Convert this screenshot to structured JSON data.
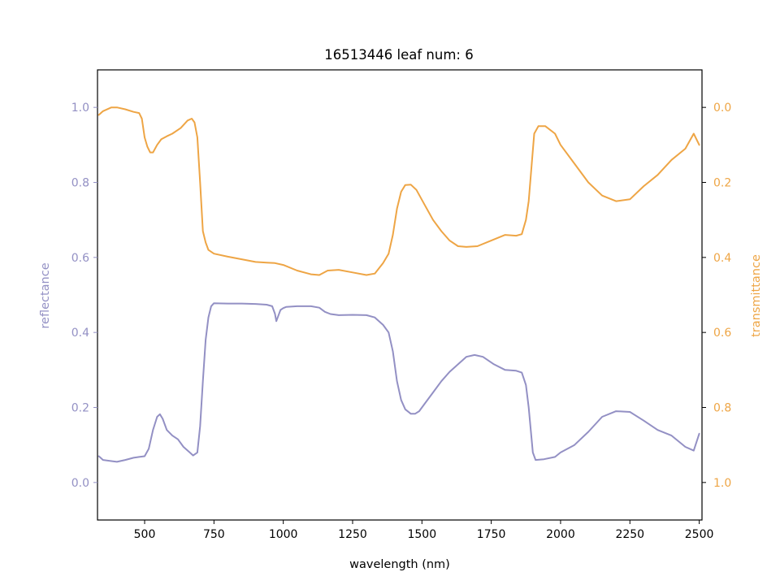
{
  "chart_data": {
    "type": "line",
    "title": "16513446 leaf num: 6",
    "xlabel": "wavelength (nm)",
    "ylabel_left": "reflectance",
    "ylabel_right": "transmittance",
    "xlim": [
      330,
      2510
    ],
    "ylim_left": [
      -0.1,
      1.1
    ],
    "ylim_right": [
      1.1,
      -0.1
    ],
    "right_axis_inverted": true,
    "grid": false,
    "xticks": [
      500,
      750,
      1000,
      1250,
      1500,
      1750,
      2000,
      2250,
      2500
    ],
    "xtick_labels": [
      "500",
      "750",
      "1000",
      "1250",
      "1500",
      "1750",
      "2000",
      "2250",
      "2500"
    ],
    "yticks_left": [
      0.0,
      0.2,
      0.4,
      0.6,
      0.8,
      1.0
    ],
    "ytick_labels_left": [
      "0.0",
      "0.2",
      "0.4",
      "0.6",
      "0.8",
      "1.0"
    ],
    "yticks_right": [
      0.0,
      0.2,
      0.4,
      0.6,
      0.8,
      1.0
    ],
    "ytick_labels_right": [
      "0.0",
      "0.2",
      "0.4",
      "0.6",
      "0.8",
      "1.0"
    ],
    "colors": {
      "reflectance": "#9390c4",
      "transmittance": "#eea545",
      "axes": "#000000"
    },
    "series": [
      {
        "axis": "left",
        "color": "#9390c4",
        "points": [
          [
            335,
            0.07
          ],
          [
            350,
            0.06
          ],
          [
            380,
            0.057
          ],
          [
            400,
            0.055
          ],
          [
            430,
            0.06
          ],
          [
            460,
            0.066
          ],
          [
            480,
            0.068
          ],
          [
            500,
            0.07
          ],
          [
            515,
            0.09
          ],
          [
            530,
            0.14
          ],
          [
            545,
            0.175
          ],
          [
            555,
            0.182
          ],
          [
            565,
            0.17
          ],
          [
            580,
            0.14
          ],
          [
            600,
            0.125
          ],
          [
            620,
            0.115
          ],
          [
            640,
            0.095
          ],
          [
            660,
            0.082
          ],
          [
            675,
            0.072
          ],
          [
            690,
            0.08
          ],
          [
            700,
            0.15
          ],
          [
            710,
            0.27
          ],
          [
            720,
            0.38
          ],
          [
            730,
            0.44
          ],
          [
            740,
            0.47
          ],
          [
            750,
            0.478
          ],
          [
            800,
            0.477
          ],
          [
            850,
            0.477
          ],
          [
            900,
            0.476
          ],
          [
            940,
            0.474
          ],
          [
            960,
            0.47
          ],
          [
            970,
            0.45
          ],
          [
            975,
            0.43
          ],
          [
            980,
            0.44
          ],
          [
            990,
            0.46
          ],
          [
            1000,
            0.465
          ],
          [
            1010,
            0.468
          ],
          [
            1050,
            0.47
          ],
          [
            1100,
            0.47
          ],
          [
            1130,
            0.466
          ],
          [
            1150,
            0.455
          ],
          [
            1170,
            0.449
          ],
          [
            1200,
            0.446
          ],
          [
            1250,
            0.447
          ],
          [
            1300,
            0.446
          ],
          [
            1330,
            0.44
          ],
          [
            1360,
            0.42
          ],
          [
            1380,
            0.4
          ],
          [
            1395,
            0.35
          ],
          [
            1410,
            0.27
          ],
          [
            1425,
            0.22
          ],
          [
            1440,
            0.195
          ],
          [
            1460,
            0.183
          ],
          [
            1475,
            0.183
          ],
          [
            1490,
            0.19
          ],
          [
            1510,
            0.21
          ],
          [
            1540,
            0.24
          ],
          [
            1570,
            0.27
          ],
          [
            1600,
            0.295
          ],
          [
            1630,
            0.315
          ],
          [
            1660,
            0.335
          ],
          [
            1690,
            0.34
          ],
          [
            1720,
            0.335
          ],
          [
            1760,
            0.315
          ],
          [
            1800,
            0.3
          ],
          [
            1840,
            0.298
          ],
          [
            1860,
            0.293
          ],
          [
            1875,
            0.26
          ],
          [
            1885,
            0.2
          ],
          [
            1895,
            0.12
          ],
          [
            1900,
            0.08
          ],
          [
            1910,
            0.06
          ],
          [
            1940,
            0.062
          ],
          [
            1980,
            0.068
          ],
          [
            2000,
            0.08
          ],
          [
            2050,
            0.1
          ],
          [
            2100,
            0.135
          ],
          [
            2150,
            0.175
          ],
          [
            2200,
            0.19
          ],
          [
            2250,
            0.188
          ],
          [
            2300,
            0.165
          ],
          [
            2350,
            0.14
          ],
          [
            2400,
            0.125
          ],
          [
            2450,
            0.095
          ],
          [
            2480,
            0.085
          ],
          [
            2500,
            0.13
          ]
        ]
      },
      {
        "axis": "right",
        "color": "#eea545",
        "points": [
          [
            335,
            0.02
          ],
          [
            350,
            0.01
          ],
          [
            380,
            0.0
          ],
          [
            400,
            0.0
          ],
          [
            430,
            0.005
          ],
          [
            460,
            0.012
          ],
          [
            480,
            0.015
          ],
          [
            490,
            0.03
          ],
          [
            500,
            0.08
          ],
          [
            510,
            0.105
          ],
          [
            520,
            0.12
          ],
          [
            530,
            0.12
          ],
          [
            545,
            0.1
          ],
          [
            560,
            0.085
          ],
          [
            580,
            0.077
          ],
          [
            600,
            0.07
          ],
          [
            630,
            0.055
          ],
          [
            655,
            0.035
          ],
          [
            670,
            0.03
          ],
          [
            680,
            0.04
          ],
          [
            690,
            0.08
          ],
          [
            700,
            0.2
          ],
          [
            710,
            0.33
          ],
          [
            720,
            0.36
          ],
          [
            730,
            0.38
          ],
          [
            750,
            0.39
          ],
          [
            800,
            0.398
          ],
          [
            850,
            0.405
          ],
          [
            900,
            0.412
          ],
          [
            940,
            0.414
          ],
          [
            970,
            0.415
          ],
          [
            1000,
            0.42
          ],
          [
            1050,
            0.435
          ],
          [
            1100,
            0.445
          ],
          [
            1130,
            0.447
          ],
          [
            1160,
            0.435
          ],
          [
            1200,
            0.433
          ],
          [
            1250,
            0.44
          ],
          [
            1300,
            0.447
          ],
          [
            1330,
            0.443
          ],
          [
            1360,
            0.415
          ],
          [
            1380,
            0.39
          ],
          [
            1395,
            0.34
          ],
          [
            1410,
            0.27
          ],
          [
            1425,
            0.225
          ],
          [
            1440,
            0.207
          ],
          [
            1460,
            0.206
          ],
          [
            1480,
            0.22
          ],
          [
            1510,
            0.26
          ],
          [
            1540,
            0.3
          ],
          [
            1570,
            0.33
          ],
          [
            1600,
            0.355
          ],
          [
            1630,
            0.37
          ],
          [
            1660,
            0.372
          ],
          [
            1700,
            0.37
          ],
          [
            1750,
            0.355
          ],
          [
            1800,
            0.34
          ],
          [
            1840,
            0.342
          ],
          [
            1860,
            0.338
          ],
          [
            1875,
            0.3
          ],
          [
            1885,
            0.25
          ],
          [
            1895,
            0.16
          ],
          [
            1905,
            0.07
          ],
          [
            1920,
            0.05
          ],
          [
            1945,
            0.05
          ],
          [
            1980,
            0.07
          ],
          [
            2000,
            0.1
          ],
          [
            2050,
            0.15
          ],
          [
            2100,
            0.2
          ],
          [
            2150,
            0.235
          ],
          [
            2200,
            0.25
          ],
          [
            2250,
            0.245
          ],
          [
            2300,
            0.21
          ],
          [
            2350,
            0.18
          ],
          [
            2400,
            0.14
          ],
          [
            2450,
            0.11
          ],
          [
            2480,
            0.07
          ],
          [
            2500,
            0.1
          ]
        ]
      }
    ]
  }
}
